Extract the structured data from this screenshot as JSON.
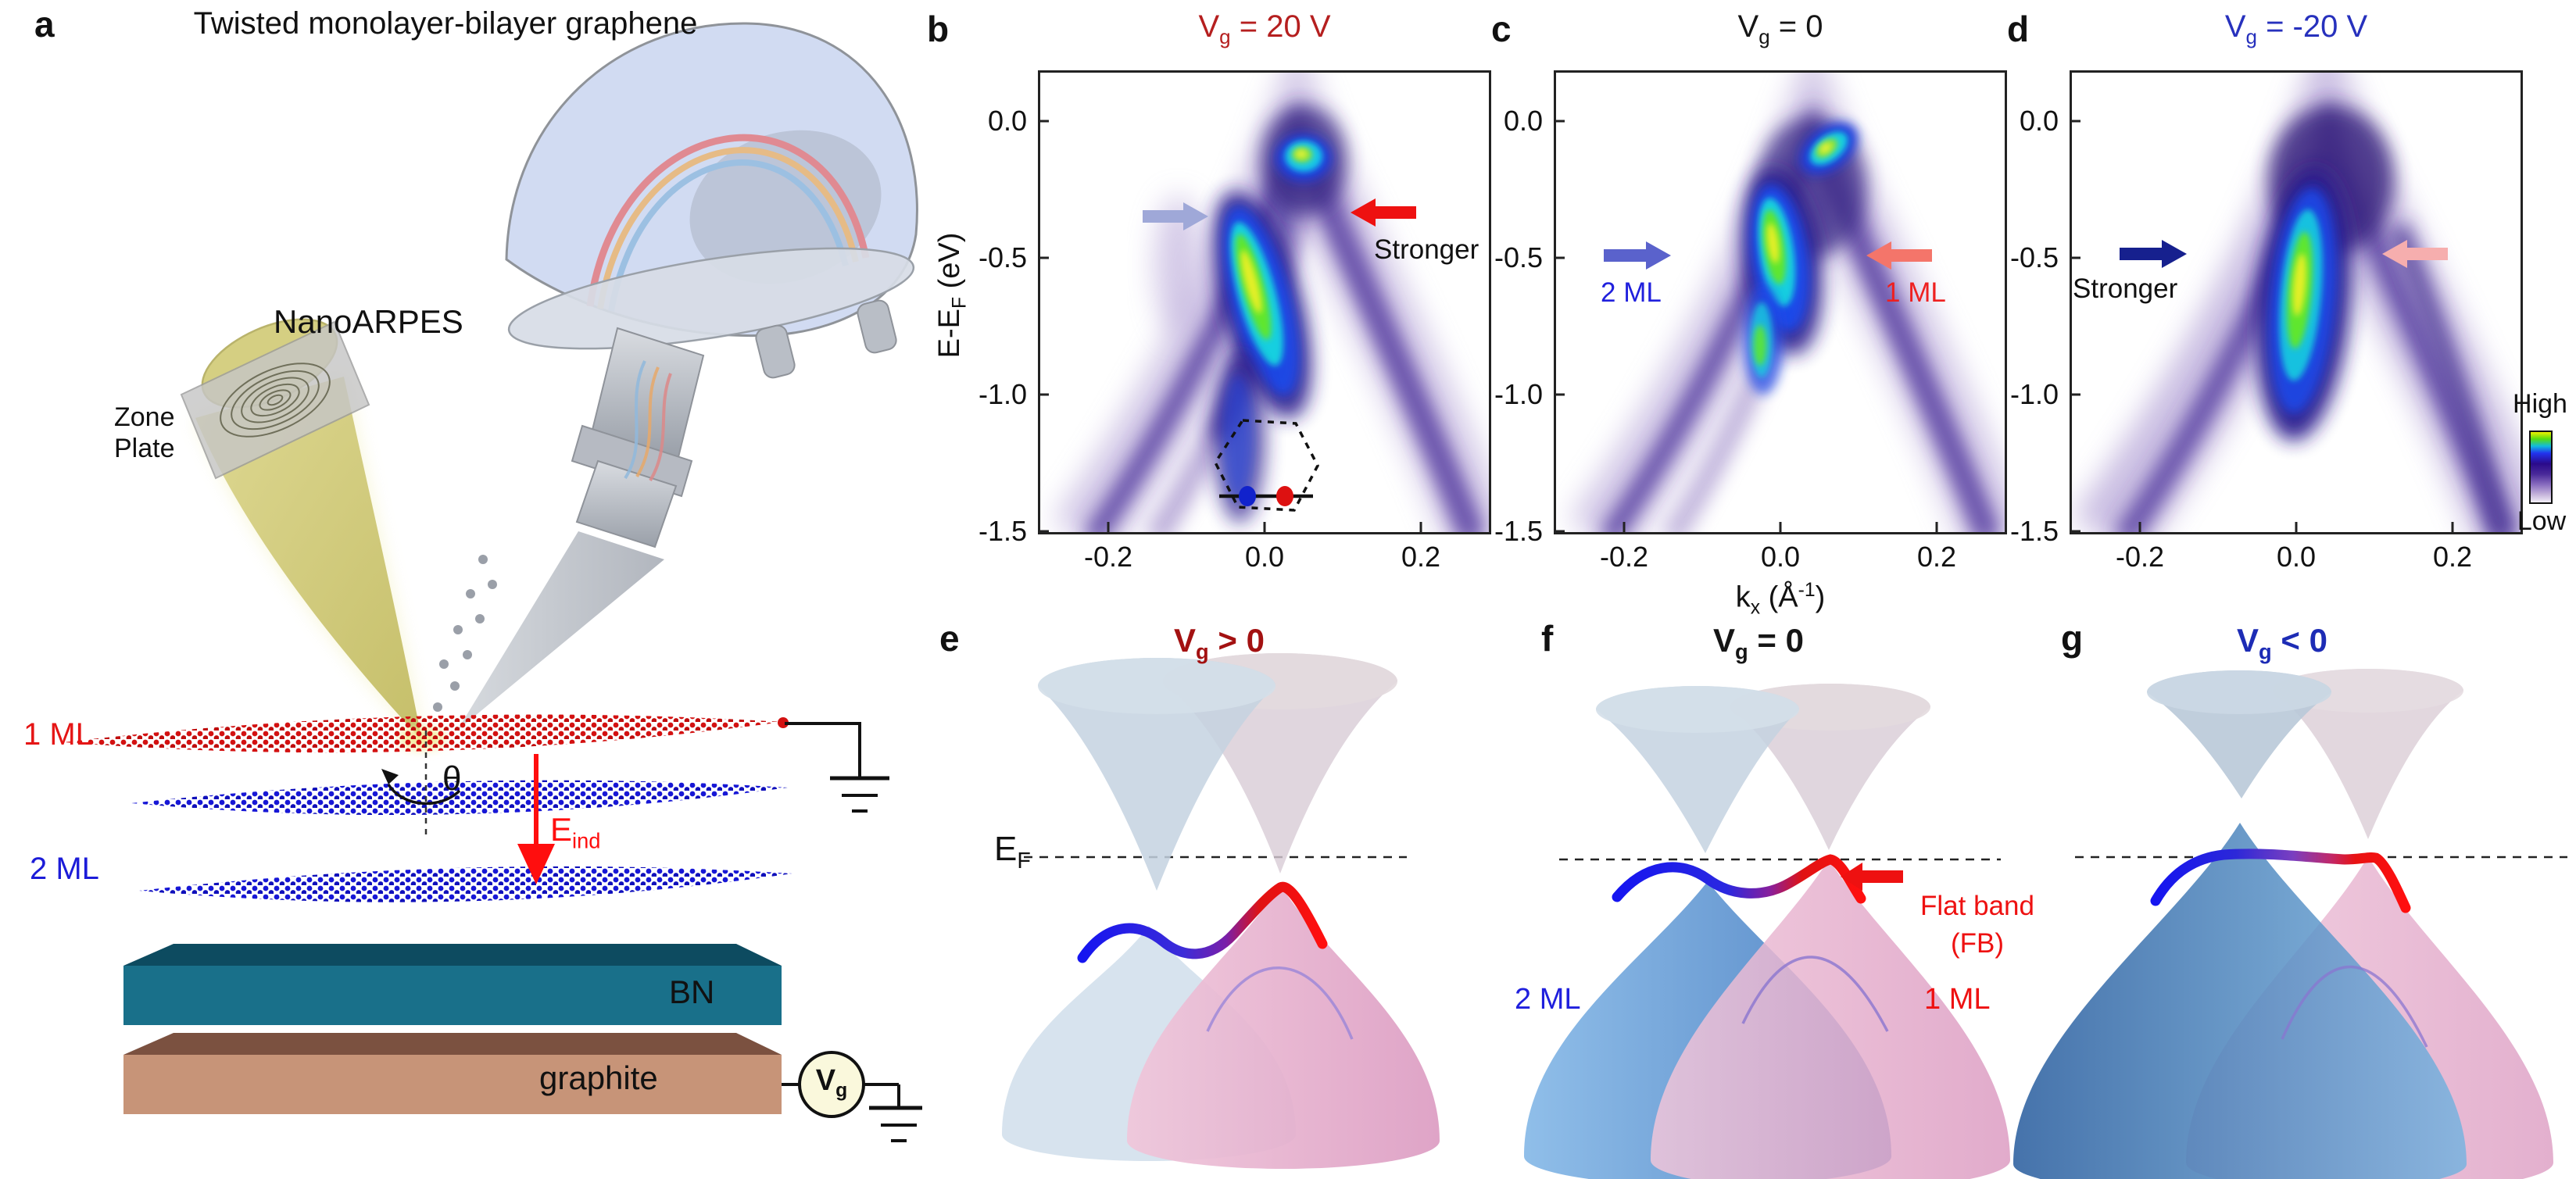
{
  "chart_data": [
    {
      "type": "heatmap",
      "panel": "b",
      "title": "V_g = 20 V",
      "xlabel": "k_x (Å^-1)",
      "ylabel": "E-E_F (eV)",
      "xticks": [
        -0.2,
        0.0,
        0.2
      ],
      "yticks": [
        0.0,
        -0.5,
        -1.0,
        -1.5
      ],
      "xlim": [
        -0.29,
        0.29
      ],
      "ylim": [
        -1.5,
        0.19
      ],
      "legend_position": "colorbar right (High→Low)",
      "annotations": [
        "pale-blue arrow → left (2 ML) branch",
        "red arrow ← right (1 ML) branch, labeled Stronger",
        "Brillouin-zone hexagon inset with blue (2 ML) and red (1 ML) K-point dots"
      ]
    },
    {
      "type": "heatmap",
      "panel": "c",
      "title": "V_g = 0",
      "xlabel": "k_x (Å^-1)",
      "ylabel": "E-E_F (eV)",
      "xticks": [
        -0.2,
        0.0,
        0.2
      ],
      "yticks": [
        0.0,
        -0.5,
        -1.0,
        -1.5
      ],
      "xlim": [
        -0.29,
        0.29
      ],
      "ylim": [
        -1.5,
        0.19
      ],
      "annotations": [
        "blue arrow labeled 2 ML (left branch)",
        "salmon arrow labeled 1 ML (right branch)"
      ]
    },
    {
      "type": "heatmap",
      "panel": "d",
      "title": "V_g = -20 V",
      "xlabel": "k_x (Å^-1)",
      "ylabel": "E-E_F (eV)",
      "xticks": [
        -0.2,
        0.0,
        0.2
      ],
      "yticks": [
        0.0,
        -0.5,
        -1.0,
        -1.5
      ],
      "xlim": [
        -0.29,
        0.29
      ],
      "ylim": [
        -1.5,
        0.19
      ],
      "annotations": [
        "dark-blue arrow labeled Stronger (left branch)",
        "pale-pink arrow (right branch)",
        "intensity colorbar High/Low"
      ]
    }
  ],
  "figure": {
    "panel_a": {
      "label": "a",
      "title": "Twisted monolayer-bilayer graphene",
      "nanoarpes": "NanoARPES",
      "zone_plate": "Zone\nPlate",
      "ml1": "1 ML",
      "ml2": "2 ML",
      "theta": "θ",
      "e_ind": "E_{ind}",
      "bn": "BN",
      "graphite": "graphite",
      "vg": "V_{g}",
      "colors": {
        "ml1": "#e51515",
        "ml2": "#1c1cd8",
        "e_ind": "#ff0e0e",
        "bn_front": "#19708a",
        "graphite_front": "#c79478"
      }
    },
    "spectra": {
      "ylabel": "E-E_{F} (eV)",
      "xlabel": "k_{x} (Å^{-1})",
      "yticks": [
        "0.0",
        "-0.5",
        "-1.0",
        "-1.5"
      ],
      "xticks": [
        "-0.2",
        "0.0",
        "0.2"
      ],
      "colorbar_high": "High",
      "colorbar_low": "Low",
      "panels": [
        {
          "label": "b",
          "title": "V_{g} = 20 V",
          "title_color": "#b51f1f",
          "left_arrow_color": "#9fa8d8",
          "right_arrow_color": "#ee1111",
          "right_label": "Stronger",
          "right_label_color": "#111111"
        },
        {
          "label": "c",
          "title": "V_{g} = 0",
          "title_color": "#151515",
          "left_arrow_color": "#5a62cc",
          "right_arrow_color": "#f4756a",
          "left_label": "2 ML",
          "left_label_color": "#2020dd",
          "right_label": "1 ML",
          "right_label_color": "#ee2020"
        },
        {
          "label": "d",
          "title": "V_{g} = -20 V",
          "title_color": "#2731bd",
          "left_arrow_color": "#16208e",
          "right_arrow_color": "#f6aeae",
          "left_label": "Stronger",
          "left_label_color": "#111111"
        }
      ]
    },
    "schematics": {
      "ef": "E_{F}",
      "panels": [
        {
          "label": "e",
          "title": "V_{g} > 0",
          "title_color": "#a31111"
        },
        {
          "label": "f",
          "title": "V_{g} = 0",
          "title_color": "#151515",
          "flat_band": "Flat band",
          "fb": "(FB)",
          "fb_color": "#ee1111",
          "ml2": "2 ML",
          "ml2_color": "#2020dd",
          "ml1": "1 ML",
          "ml1_color": "#ee1111"
        },
        {
          "label": "g",
          "title": "V_{g} < 0",
          "title_color": "#1d2cb5"
        }
      ]
    }
  }
}
